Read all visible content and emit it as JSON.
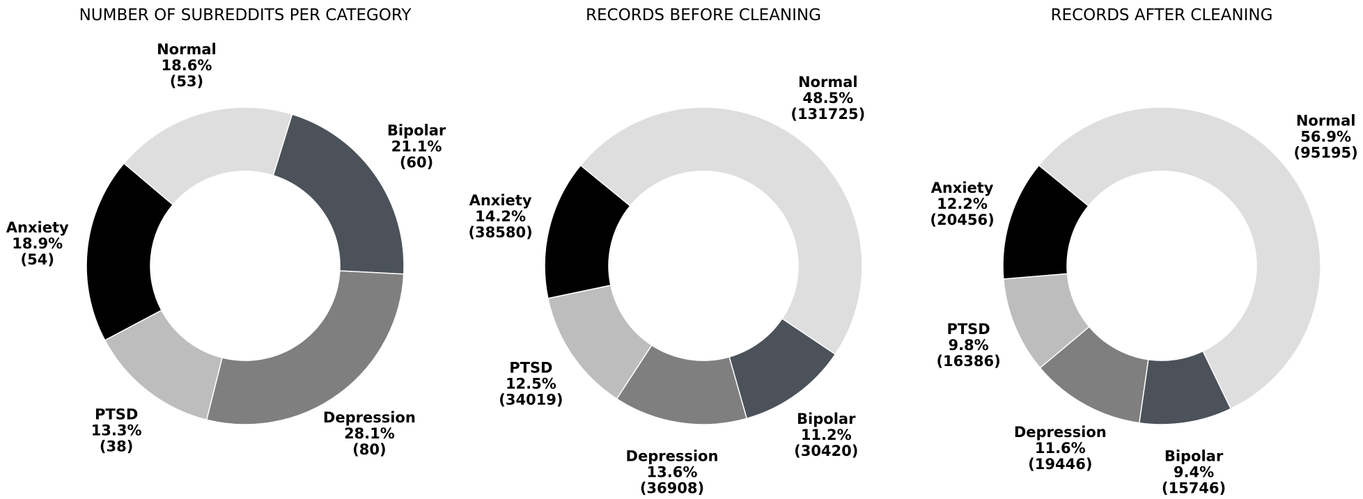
{
  "chart_data": [
    {
      "type": "pie",
      "title": "NUMBER OF SUBREDDITS PER CATEGORY",
      "donut": true,
      "slices": [
        {
          "label": "Bipolar",
          "value": 60,
          "percent": "21.1%",
          "color": "#4b525a"
        },
        {
          "label": "Depression",
          "value": 80,
          "percent": "28.1%",
          "color": "#7f7f7f"
        },
        {
          "label": "PTSD",
          "value": 38,
          "percent": "13.3%",
          "color": "#bdbdbd"
        },
        {
          "label": "Anxiety",
          "value": 54,
          "percent": "18.9%",
          "color": "#000000"
        },
        {
          "label": "Normal",
          "value": 53,
          "percent": "18.6%",
          "color": "#dedede"
        }
      ]
    },
    {
      "type": "pie",
      "title": "RECORDS BEFORE CLEANING",
      "donut": true,
      "slices": [
        {
          "label": "Normal",
          "value": 131725,
          "percent": "48.5%",
          "color": "#dedede"
        },
        {
          "label": "Bipolar",
          "value": 30420,
          "percent": "11.2%",
          "color": "#4b525a"
        },
        {
          "label": "Depression",
          "value": 36908,
          "percent": "13.6%",
          "color": "#7f7f7f"
        },
        {
          "label": "PTSD",
          "value": 34019,
          "percent": "12.5%",
          "color": "#bdbdbd"
        },
        {
          "label": "Anxiety",
          "value": 38580,
          "percent": "14.2%",
          "color": "#000000"
        }
      ]
    },
    {
      "type": "pie",
      "title": "RECORDS AFTER CLEANING",
      "donut": true,
      "slices": [
        {
          "label": "Normal",
          "value": 95195,
          "percent": "56.9%",
          "color": "#dedede"
        },
        {
          "label": "Bipolar",
          "value": 15746,
          "percent": "9.4%",
          "color": "#4b525a"
        },
        {
          "label": "Depression",
          "value": 19446,
          "percent": "11.6%",
          "color": "#7f7f7f"
        },
        {
          "label": "PTSD",
          "value": 16386,
          "percent": "9.8%",
          "color": "#bdbdbd"
        },
        {
          "label": "Anxiety",
          "value": 20456,
          "percent": "12.2%",
          "color": "#000000"
        }
      ]
    }
  ]
}
